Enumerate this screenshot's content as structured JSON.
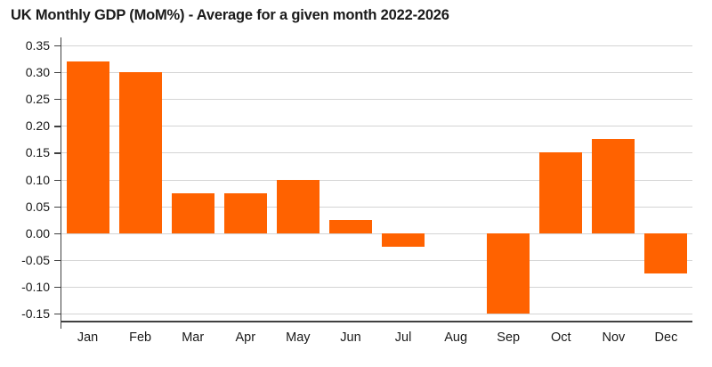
{
  "chart_data": {
    "type": "bar",
    "title": "UK Monthly GDP (MoM%) - Average for a given month 2022-2026",
    "categories": [
      "Jan",
      "Feb",
      "Mar",
      "Apr",
      "May",
      "Jun",
      "Jul",
      "Aug",
      "Sep",
      "Oct",
      "Nov",
      "Dec"
    ],
    "values": [
      0.32,
      0.3,
      0.075,
      0.075,
      0.1,
      0.025,
      -0.025,
      0.0,
      -0.15,
      0.15,
      0.175,
      -0.075
    ],
    "xlabel": "",
    "ylabel": "",
    "ylim": [
      -0.1666,
      0.365
    ],
    "yticks": [
      0.35,
      0.3,
      0.25,
      0.2,
      0.15,
      0.1,
      0.05,
      0.0,
      -0.05,
      -0.1,
      -0.15
    ],
    "ytick_labels": [
      "0.35",
      "0.30",
      "0.25",
      "0.20",
      "0.15",
      "0.10",
      "0.05",
      "0.00",
      "-0.05",
      "-0.10",
      "-0.15"
    ],
    "grid": true,
    "legend_position": "none",
    "colors": {
      "bar": "#FF6200",
      "gridline": "#D4D4D4",
      "axis": "#404040",
      "text": "#1A1A1A",
      "background": "#FFFFFF"
    }
  }
}
